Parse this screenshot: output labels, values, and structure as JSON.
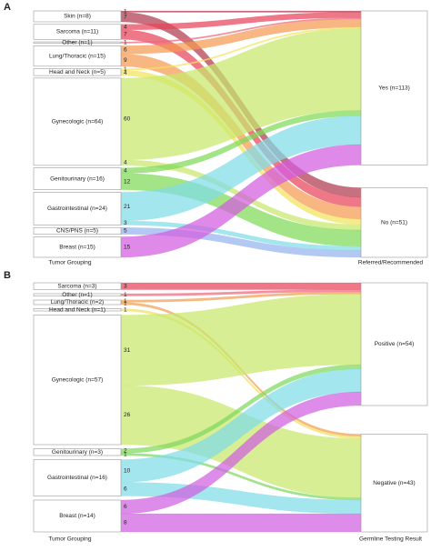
{
  "chart_data": [
    {
      "type": "sankey",
      "panel": "A",
      "source_title": "Tumor Grouping",
      "target_title": "Referred/Recommended",
      "targets": [
        "Yes (n=113)",
        "No (n=51)"
      ],
      "sources": [
        {
          "name": "Skin (n=8)",
          "color": "#b03a4e",
          "values": [
            1,
            7
          ]
        },
        {
          "name": "Sarcoma (n=11)",
          "color": "#e8445a",
          "values": [
            4,
            7
          ]
        },
        {
          "name": "Other (n=1)",
          "color": "#ec6a7e",
          "values": [
            1,
            null
          ]
        },
        {
          "name": "Lung/Thoracic (n=15)",
          "color": "#f59a52",
          "values": [
            6,
            9
          ]
        },
        {
          "name": "Head and Neck (n=5)",
          "color": "#f2e35c",
          "values": [
            1,
            4
          ]
        },
        {
          "name": "Gynecologic (n=64)",
          "color": "#c8e86b",
          "values": [
            60,
            4
          ]
        },
        {
          "name": "Genitourinary (n=16)",
          "color": "#7ed957",
          "values": [
            4,
            12
          ]
        },
        {
          "name": "Gastrointestinal (n=24)",
          "color": "#7fdde8",
          "values": [
            21,
            3
          ]
        },
        {
          "name": "CNS/PNS (n=5)",
          "color": "#96b4f0",
          "values": [
            null,
            5
          ]
        },
        {
          "name": "Breast (n=15)",
          "color": "#d35ddf",
          "values": [
            15,
            null
          ]
        }
      ]
    },
    {
      "type": "sankey",
      "panel": "B",
      "source_title": "Tumor Grouping",
      "target_title": "Germline Testing Result",
      "targets": [
        "Positive (n=54)",
        "Negative (n=43)"
      ],
      "sources": [
        {
          "name": "Sarcoma (n=3)",
          "color": "#e8445a",
          "values": [
            3,
            null
          ]
        },
        {
          "name": "Other (n=1)",
          "color": "#ec6a7e",
          "values": [
            1,
            null
          ]
        },
        {
          "name": "Lung/Thoracic (n=2)",
          "color": "#f0a050",
          "values": [
            1,
            1
          ]
        },
        {
          "name": "Head and Neck (n=1)",
          "color": "#f0e060",
          "values": [
            null,
            1
          ]
        },
        {
          "name": "Gynecologic (n=57)",
          "color": "#c8e86b",
          "values": [
            31,
            26
          ]
        },
        {
          "name": "Genitourinary (n=3)",
          "color": "#80d860",
          "values": [
            2,
            1
          ]
        },
        {
          "name": "Gastrointestinal (n=16)",
          "color": "#80dce8",
          "values": [
            10,
            6
          ]
        },
        {
          "name": "Breast (n=14)",
          "color": "#d060e0",
          "values": [
            6,
            8
          ]
        }
      ]
    }
  ]
}
